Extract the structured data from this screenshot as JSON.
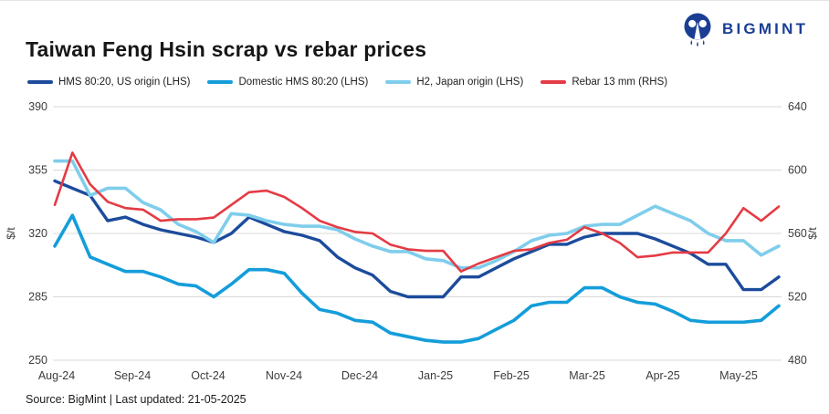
{
  "header": {
    "title": "Taiwan Feng Hsin scrap vs rebar prices",
    "brand": "BIGMINT"
  },
  "footer": {
    "text": "Source: BigMint |  Last updated: 21-05-2025"
  },
  "colors": {
    "brand_navy": "#1a3e94",
    "gridline": "#d8d8d8",
    "axis_text": "#3c3c3c"
  },
  "chart_data": {
    "type": "line",
    "title": "Taiwan Feng Hsin scrap vs rebar prices",
    "x_labels": [
      "Aug-24",
      "Sep-24",
      "Oct-24",
      "Nov-24",
      "Dec-24",
      "Jan-25",
      "Feb-25",
      "Mar-25",
      "Apr-25",
      "May-25"
    ],
    "x_resolution": "weekly",
    "grid": true,
    "legend_position": "top",
    "left_axis": {
      "title": "$/t",
      "min": 250,
      "max": 390,
      "ticks": [
        390,
        355,
        320,
        285,
        250
      ]
    },
    "right_axis": {
      "title": "$/t",
      "min": 480,
      "max": 640,
      "ticks": [
        640,
        600,
        560,
        520,
        480
      ]
    },
    "series": [
      {
        "name": "HMS 80:20, US origin (LHS)",
        "axis": "left",
        "color": "#1c4b9c",
        "values": [
          349,
          345,
          341,
          327,
          329,
          325,
          322,
          320,
          318,
          315,
          320,
          329,
          325,
          321,
          319,
          316,
          307,
          301,
          297,
          288,
          285,
          285,
          285,
          296,
          296,
          301,
          306,
          310,
          314,
          314,
          318,
          320,
          320,
          320,
          317,
          313,
          309,
          303,
          303,
          289,
          289,
          296
        ]
      },
      {
        "name": "Domestic HMS 80:20 (LHS)",
        "axis": "left",
        "color": "#149dda",
        "values": [
          313,
          330,
          307,
          303,
          299,
          299,
          296,
          292,
          291,
          285,
          292,
          300,
          300,
          298,
          287,
          278,
          276,
          272,
          271,
          265,
          263,
          261,
          260,
          260,
          262,
          267,
          272,
          280,
          282,
          282,
          290,
          290,
          285,
          282,
          281,
          277,
          272,
          271,
          271,
          271,
          272,
          280
        ]
      },
      {
        "name": "H2, Japan origin (LHS)",
        "axis": "left",
        "color": "#7fcdec",
        "values": [
          360,
          360,
          341,
          345,
          345,
          337,
          333,
          325,
          321,
          315,
          331,
          330,
          327,
          325,
          324,
          324,
          322,
          317,
          313,
          310,
          310,
          306,
          305,
          301,
          301,
          305,
          310,
          316,
          319,
          320,
          324,
          325,
          325,
          330,
          335,
          331,
          327,
          320,
          316,
          316,
          308,
          313
        ]
      },
      {
        "name": "Rebar 13 mm (RHS)",
        "axis": "right",
        "color": "#e43b44",
        "values": [
          578,
          611,
          591,
          580,
          576,
          575,
          568,
          569,
          569,
          570,
          578,
          586,
          587,
          583,
          576,
          568,
          564,
          561,
          560,
          553,
          550,
          549,
          549,
          536,
          541,
          545,
          549,
          550,
          554,
          556,
          564,
          560,
          554,
          545,
          546,
          548,
          548,
          548,
          560,
          576,
          568,
          577
        ]
      }
    ]
  }
}
